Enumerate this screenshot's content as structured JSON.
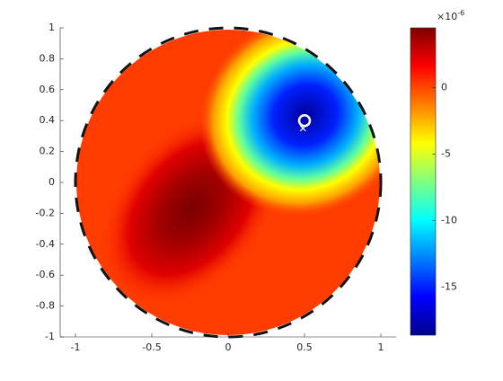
{
  "chart_data": {
    "type": "contour",
    "xlim": [
      -1.1,
      1.1
    ],
    "ylim": [
      -1,
      1
    ],
    "xticks": [
      -1,
      -0.5,
      0,
      0.5,
      1
    ],
    "yticks": [
      -1,
      -0.8,
      -0.6,
      -0.4,
      -0.2,
      0,
      0.2,
      0.4,
      0.6,
      0.8,
      1
    ],
    "boundary_radius": 1,
    "source": {
      "x": 0.5,
      "y": 0.4
    },
    "estimate": {
      "x": 0.49,
      "y": 0.35
    },
    "colorbar": {
      "clim": [
        -18.6,
        4.5
      ],
      "ticks": [
        -15,
        -10,
        -5,
        0
      ],
      "exponent_base": "×10",
      "exponent_power": "-6"
    }
  }
}
